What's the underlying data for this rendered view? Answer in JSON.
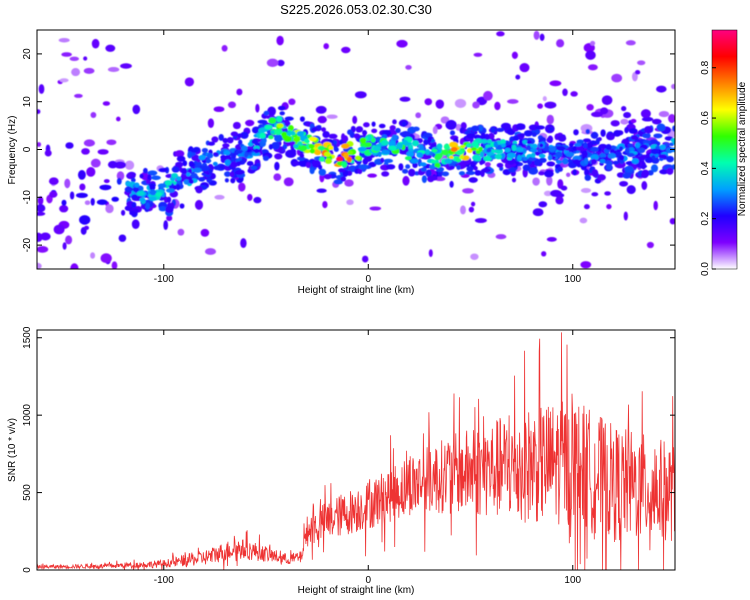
{
  "title": "S225.2026.053.02.30.C30",
  "chart_data": [
    {
      "type": "heatmap",
      "xlabel": "Height of straight line (km)",
      "ylabel": "Frequency (Hz)",
      "xlim": [
        -162,
        150
      ],
      "ylim": [
        -25,
        25
      ],
      "xticks": [
        -100,
        0,
        100
      ],
      "yticks": [
        -20,
        -10,
        0,
        10,
        20
      ],
      "colorbar": {
        "label": "Normalized spectral amplitude",
        "range": [
          0.0,
          0.95
        ],
        "ticks": [
          0.0,
          0.2,
          0.4,
          0.6,
          0.8
        ],
        "tick_labels": [
          "0.0",
          "0.2",
          "0.4",
          "0.6",
          "0.8"
        ],
        "colors": [
          "#ffffff",
          "#7d00ff",
          "#2000ff",
          "#00a0ff",
          "#00ffb0",
          "#30ff00",
          "#ffff00",
          "#ff8000",
          "#ff0000",
          "#ff0080"
        ]
      },
      "ridge": {
        "x": [
          -115,
          -100,
          -80,
          -60,
          -45,
          -40,
          -30,
          -15,
          0,
          15,
          30,
          45,
          60,
          80,
          100,
          120,
          150
        ],
        "y": [
          -9,
          -9,
          -3,
          -1,
          5,
          3,
          1,
          -2,
          1,
          1,
          -2,
          0,
          0,
          0,
          -1,
          -1,
          0
        ],
        "amplitude": [
          0.35,
          0.4,
          0.3,
          0.3,
          0.5,
          0.55,
          0.6,
          0.9,
          0.45,
          0.5,
          0.4,
          0.75,
          0.4,
          0.35,
          0.3,
          0.3,
          0.35
        ]
      }
    },
    {
      "type": "line",
      "xlabel": "Height of straight line (km)",
      "ylabel": "SNR (10 * v/v)",
      "xlim": [
        -162,
        150
      ],
      "ylim": [
        0,
        1550
      ],
      "xticks": [
        -100,
        0,
        100
      ],
      "yticks": [
        0,
        500,
        1000,
        1500
      ],
      "series": [
        {
          "name": "SNR",
          "color": "#ee3333",
          "envelope_x": [
            -162,
            -130,
            -100,
            -80,
            -65,
            -55,
            -40,
            -33,
            -30,
            -20,
            0,
            20,
            40,
            60,
            80,
            100,
            120,
            140,
            150
          ],
          "envelope_mean": [
            20,
            25,
            40,
            80,
            140,
            120,
            70,
            80,
            250,
            320,
            420,
            550,
            620,
            650,
            680,
            700,
            560,
            520,
            500
          ],
          "envelope_spread": [
            12,
            14,
            25,
            50,
            70,
            60,
            35,
            40,
            100,
            130,
            160,
            200,
            250,
            320,
            380,
            420,
            380,
            340,
            320
          ]
        }
      ]
    }
  ]
}
